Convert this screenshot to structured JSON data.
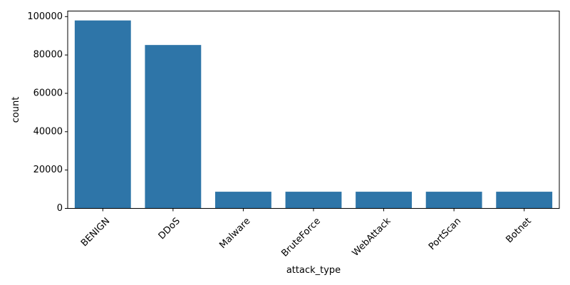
{
  "chart_data": {
    "type": "bar",
    "categories": [
      "BENIGN",
      "DDoS",
      "Malware",
      "BruteForce",
      "WebAttack",
      "PortScan",
      "Botnet"
    ],
    "values": [
      98000,
      85200,
      8700,
      8700,
      8700,
      8700,
      8700
    ],
    "title": "",
    "xlabel": "attack_type",
    "ylabel": "count",
    "ylim": [
      0,
      102900
    ],
    "yticks": [
      0,
      20000,
      40000,
      60000,
      80000,
      100000
    ],
    "bar_color": "#2e75a8",
    "grid": false,
    "legend": "none"
  }
}
